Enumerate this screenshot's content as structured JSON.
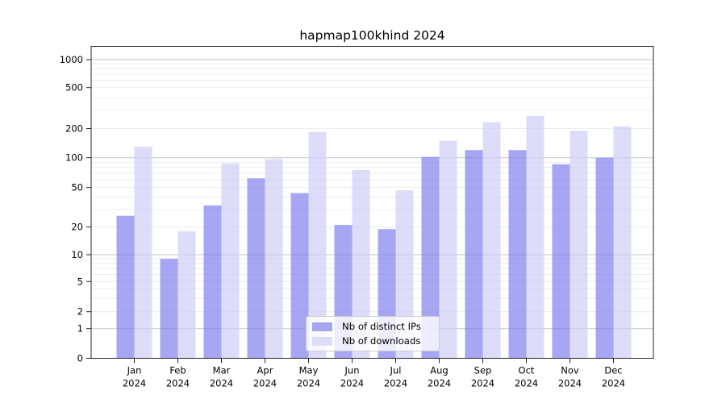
{
  "chart_data": {
    "type": "bar",
    "title": "hapmap100khind 2024",
    "categories": [
      "Jan",
      "Feb",
      "Mar",
      "Apr",
      "May",
      "Jun",
      "Jul",
      "Aug",
      "Sep",
      "Oct",
      "Nov",
      "Dec"
    ],
    "year": "2024",
    "series": [
      {
        "name": "Nb of distinct IPs",
        "color": "#a6a6ee",
        "fill": "rgba(124,124,238,0.68)",
        "values": [
          26,
          9,
          33,
          62,
          44,
          21,
          19,
          102,
          120,
          120,
          86,
          100
        ]
      },
      {
        "name": "Nb of downloads",
        "color": "#ddddf8",
        "fill": "rgba(205,205,248,0.68)",
        "values": [
          130,
          18,
          88,
          97,
          185,
          75,
          47,
          150,
          230,
          265,
          190,
          210
        ]
      }
    ],
    "y_ticks": [
      0,
      1,
      2,
      5,
      10,
      20,
      50,
      100,
      200,
      500,
      1000
    ],
    "ylim": [
      0,
      1000
    ],
    "scale": "symlog-like",
    "grid": true,
    "legend_position": "lower center",
    "colors": {
      "major_gridline": "#c6c6c6",
      "minor_gridline": "#ececec",
      "axis": "#262626",
      "background": "#ffffff"
    }
  }
}
